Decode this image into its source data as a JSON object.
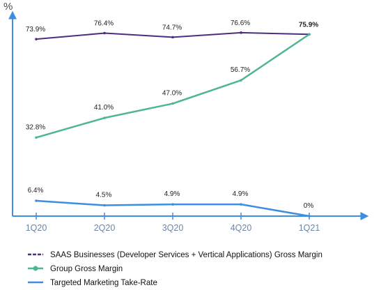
{
  "chart_data": {
    "type": "line",
    "ylabel": "%",
    "categories": [
      "1Q20",
      "2Q20",
      "3Q20",
      "4Q20",
      "1Q21"
    ],
    "series": [
      {
        "name": "SAAS Businesses (Developer Services + Vertical Applications) Gross Margin",
        "values": [
          73.9,
          76.4,
          74.7,
          76.6,
          75.9
        ],
        "labels": [
          "73.9%",
          "76.4%",
          "74.7%",
          "76.6%",
          "75.9%"
        ],
        "color": "#4b2f7f"
      },
      {
        "name": "Group Gross Margin",
        "values": [
          32.8,
          41.0,
          47.0,
          56.7,
          75.9
        ],
        "labels": [
          "32.8%",
          "41.0%",
          "47.0%",
          "56.7%",
          ""
        ],
        "color": "#4fb597"
      },
      {
        "name": "Targeted Marketing Take-Rate",
        "values": [
          6.4,
          4.5,
          4.9,
          4.9,
          0
        ],
        "labels": [
          "6.4%",
          "4.5%",
          "4.9%",
          "4.9%",
          "0%"
        ],
        "color": "#3d8ee0"
      }
    ],
    "ylim": [
      0,
      85
    ],
    "grid": false,
    "legend_position": "bottom-left",
    "axis_color": "#3d8ee0"
  }
}
